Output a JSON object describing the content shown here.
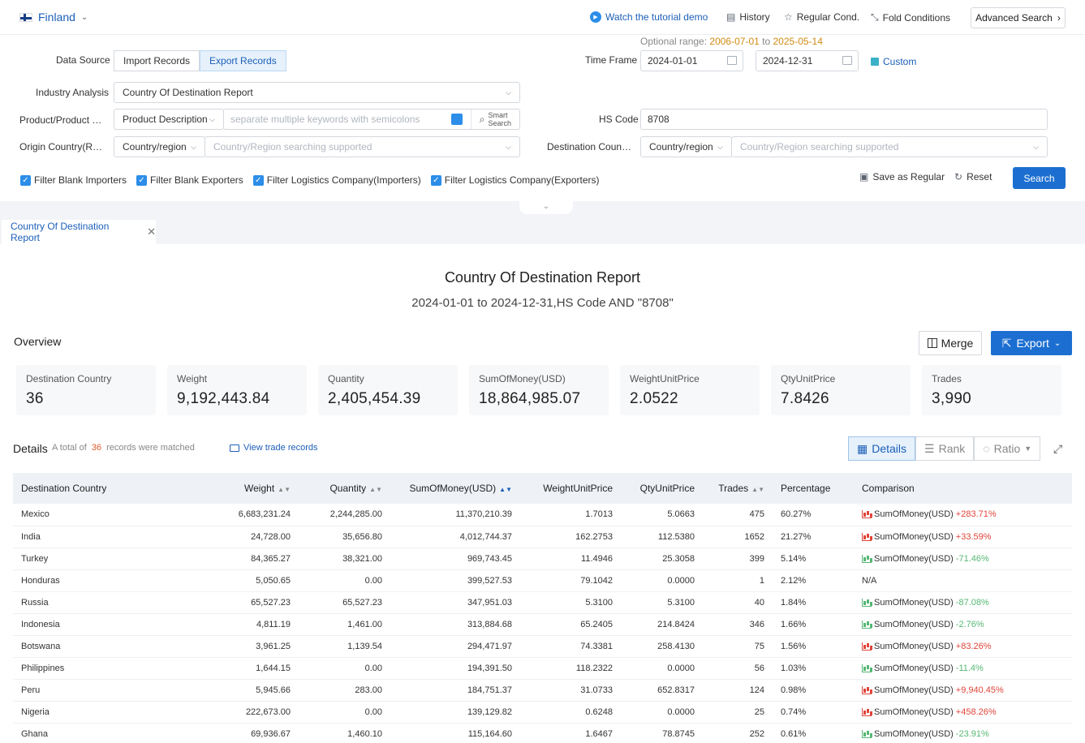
{
  "topbar": {
    "country": "Finland",
    "tutorial": "Watch the tutorial demo",
    "history": "History",
    "regular": "Regular Cond.",
    "fold": "Fold Conditions",
    "advanced": "Advanced Search"
  },
  "filters": {
    "data_source_label": "Data Source",
    "import_label": "Import Records",
    "export_label": "Export Records",
    "industry_label": "Industry Analysis",
    "industry_value": "Country Of Destination Report",
    "product_label": "Product/Product D...",
    "product_type": "Product Description",
    "product_placeholder": "separate multiple keywords with semicolons",
    "smart_search_1": "Smart",
    "smart_search_2": "Search",
    "origin_label": "Origin Country(Regi...",
    "origin_type": "Country/region",
    "origin_placeholder": "Country/Region searching supported",
    "optional_prefix": "Optional range:",
    "optional_start": "2006-07-01",
    "optional_to": "to",
    "optional_end": "2025-05-14",
    "timeframe_label": "Time Frame",
    "date_from": "2024-01-01",
    "date_to": "2024-12-31",
    "custom": "Custom",
    "hs_label": "HS Code",
    "hs_value": "8708",
    "dest_label": "Destination Countr...",
    "dest_type": "Country/region",
    "dest_placeholder": "Country/Region searching supported",
    "checks": [
      "Filter Blank Importers",
      "Filter Blank Exporters",
      "Filter Logistics Company(Importers)",
      "Filter Logistics Company(Exporters)"
    ],
    "save_regular": "Save as Regular",
    "reset": "Reset",
    "search": "Search"
  },
  "tab": {
    "label": "Country Of Destination Report"
  },
  "report": {
    "title": "Country Of Destination Report",
    "subtitle": "2024-01-01 to 2024-12-31,HS Code AND \"8708\"",
    "overview": "Overview",
    "merge": "Merge",
    "export": "Export",
    "cards": [
      {
        "label": "Destination Country",
        "value": "36"
      },
      {
        "label": "Weight",
        "value": "9,192,443.84"
      },
      {
        "label": "Quantity",
        "value": "2,405,454.39"
      },
      {
        "label": "SumOfMoney(USD)",
        "value": "18,864,985.07"
      },
      {
        "label": "WeightUnitPrice",
        "value": "2.0522"
      },
      {
        "label": "QtyUnitPrice",
        "value": "7.8426"
      },
      {
        "label": "Trades",
        "value": "3,990"
      }
    ],
    "details": "Details",
    "total_prefix": "A total of",
    "total_count": "36",
    "total_suffix": "records were matched",
    "view_trade": "View trade records",
    "view_details": "Details",
    "view_rank": "Rank",
    "view_ratio": "Ratio"
  },
  "table": {
    "headers": [
      "Destination Country",
      "Weight",
      "Quantity",
      "SumOfMoney(USD)",
      "WeightUnitPrice",
      "QtyUnitPrice",
      "Trades",
      "Percentage",
      "Comparison"
    ],
    "rows": [
      [
        "Mexico",
        "6,683,231.24",
        "2,244,285.00",
        "11,370,210.39",
        "1.7013",
        "5.0663",
        "475",
        "60.27%",
        "SumOfMoney(USD)",
        "+283.71%",
        "up"
      ],
      [
        "India",
        "24,728.00",
        "35,656.80",
        "4,012,744.37",
        "162.2753",
        "112.5380",
        "1652",
        "21.27%",
        "SumOfMoney(USD)",
        "+33.59%",
        "up"
      ],
      [
        "Turkey",
        "84,365.27",
        "38,321.00",
        "969,743.45",
        "11.4946",
        "25.3058",
        "399",
        "5.14%",
        "SumOfMoney(USD)",
        "-71.46%",
        "down"
      ],
      [
        "Honduras",
        "5,050.65",
        "0.00",
        "399,527.53",
        "79.1042",
        "0.0000",
        "1",
        "2.12%",
        "N/A",
        "",
        "none"
      ],
      [
        "Russia",
        "65,527.23",
        "65,527.23",
        "347,951.03",
        "5.3100",
        "5.3100",
        "40",
        "1.84%",
        "SumOfMoney(USD)",
        "-87.08%",
        "down"
      ],
      [
        "Indonesia",
        "4,811.19",
        "1,461.00",
        "313,884.68",
        "65.2405",
        "214.8424",
        "346",
        "1.66%",
        "SumOfMoney(USD)",
        "-2.76%",
        "down"
      ],
      [
        "Botswana",
        "3,961.25",
        "1,139.54",
        "294,471.97",
        "74.3381",
        "258.4130",
        "75",
        "1.56%",
        "SumOfMoney(USD)",
        "+83.26%",
        "up"
      ],
      [
        "Philippines",
        "1,644.15",
        "0.00",
        "194,391.50",
        "118.2322",
        "0.0000",
        "56",
        "1.03%",
        "SumOfMoney(USD)",
        "-11.4%",
        "down"
      ],
      [
        "Peru",
        "5,945.66",
        "283.00",
        "184,751.37",
        "31.0733",
        "652.8317",
        "124",
        "0.98%",
        "SumOfMoney(USD)",
        "+9,940.45%",
        "up"
      ],
      [
        "Nigeria",
        "222,673.00",
        "0.00",
        "139,129.82",
        "0.6248",
        "0.0000",
        "25",
        "0.74%",
        "SumOfMoney(USD)",
        "+458.26%",
        "up"
      ],
      [
        "Ghana",
        "69,936.67",
        "1,460.10",
        "115,164.60",
        "1.6467",
        "78.8745",
        "252",
        "0.61%",
        "SumOfMoney(USD)",
        "-23.91%",
        "down"
      ]
    ]
  }
}
